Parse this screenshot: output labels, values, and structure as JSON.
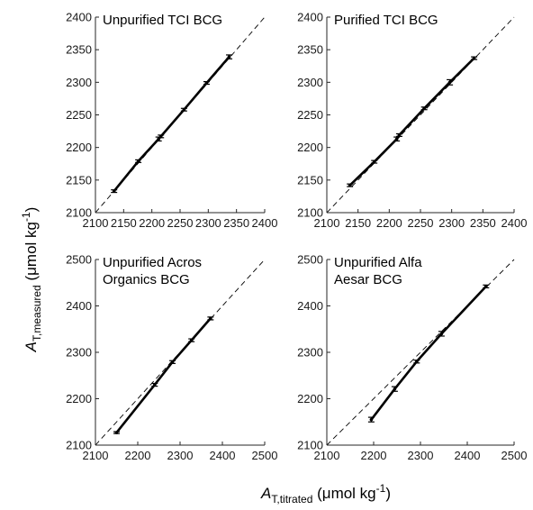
{
  "chart_data": [
    {
      "type": "line",
      "title": "Unpurified TCI BCG",
      "title_lines": [
        "Unpurified TCI BCG"
      ],
      "xlim": [
        2100,
        2400
      ],
      "ylim": [
        2100,
        2400
      ],
      "xticks": [
        2100,
        2150,
        2200,
        2250,
        2300,
        2350,
        2400
      ],
      "yticks": [
        2100,
        2150,
        2200,
        2250,
        2300,
        2350,
        2400
      ],
      "reference_line": "1:1 dashed",
      "series": [
        {
          "x": [
            2133,
            2176,
            2212,
            2216,
            2257,
            2297,
            2337
          ],
          "y": [
            2133,
            2179,
            2213,
            2217,
            2258,
            2299,
            2339
          ],
          "yerr": [
            2,
            2,
            3,
            2,
            2,
            2,
            3
          ]
        }
      ]
    },
    {
      "type": "line",
      "title": "Purified TCI BCG",
      "title_lines": [
        "Purified TCI BCG"
      ],
      "xlim": [
        2100,
        2400
      ],
      "ylim": [
        2100,
        2400
      ],
      "xticks": [
        2100,
        2150,
        2200,
        2250,
        2300,
        2350,
        2400
      ],
      "yticks": [
        2100,
        2150,
        2200,
        2250,
        2300,
        2350,
        2400
      ],
      "reference_line": "1:1 dashed",
      "series": [
        {
          "x": [
            2137,
            2176,
            2212,
            2216,
            2256,
            2297,
            2336
          ],
          "y": [
            2142,
            2178,
            2213,
            2219,
            2260,
            2300,
            2337
          ],
          "yerr": [
            2,
            2,
            3,
            2,
            2,
            4,
            2
          ]
        }
      ]
    },
    {
      "type": "line",
      "title": "Unpurified Acros Organics BCG",
      "title_lines": [
        "Unpurified Acros",
        "Organics BCG"
      ],
      "xlim": [
        2100,
        2500
      ],
      "ylim": [
        2100,
        2500
      ],
      "xticks": [
        2100,
        2200,
        2300,
        2400,
        2500
      ],
      "yticks": [
        2100,
        2200,
        2300,
        2400,
        2500
      ],
      "reference_line": "1:1 dashed",
      "series": [
        {
          "x": [
            2150,
            2240,
            2282,
            2327,
            2372
          ],
          "y": [
            2127,
            2230,
            2279,
            2326,
            2373
          ],
          "yerr": [
            2,
            3,
            3,
            3,
            3
          ]
        }
      ]
    },
    {
      "type": "line",
      "title": "Unpurified Alfa Aesar BCG",
      "title_lines": [
        "Unpurified Alfa",
        "Aesar BCG"
      ],
      "xlim": [
        2100,
        2500
      ],
      "ylim": [
        2100,
        2500
      ],
      "xticks": [
        2100,
        2200,
        2300,
        2400,
        2500
      ],
      "yticks": [
        2100,
        2200,
        2300,
        2400,
        2500
      ],
      "reference_line": "1:1 dashed",
      "series": [
        {
          "x": [
            2195,
            2245,
            2292,
            2345,
            2440
          ],
          "y": [
            2155,
            2221,
            2280,
            2340,
            2442
          ],
          "yerr": [
            5,
            5,
            3,
            5,
            3
          ]
        }
      ]
    }
  ],
  "labels": {
    "y_symbol": "A",
    "y_subscript": "T,measured",
    "y_unit_prefix": " (μmol kg",
    "y_unit_exp": "-1",
    "y_unit_suffix": ")",
    "x_symbol": "A",
    "x_subscript": "T,titrated",
    "x_unit_prefix": " (μmol kg",
    "x_unit_exp": "-1",
    "x_unit_suffix": ")"
  },
  "colors": {
    "line": "#000000",
    "reference": "#000000",
    "axis": "#262626"
  }
}
